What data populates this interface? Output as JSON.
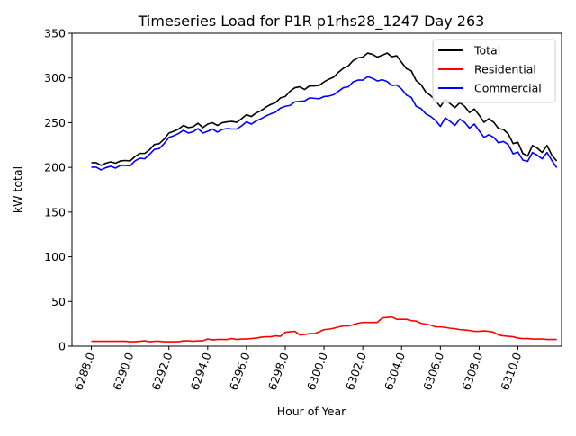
{
  "chart_data": {
    "type": "line",
    "title": "Timeseries Load for P1R p1rhs28_1247  Day 263",
    "xlabel": "Hour of Year",
    "ylabel": "kW total",
    "xlim": [
      6287.0,
      6312.25
    ],
    "ylim": [
      0,
      350
    ],
    "xticks": [
      6288,
      6290,
      6292,
      6294,
      6296,
      6298,
      6300,
      6302,
      6304,
      6306,
      6308,
      6310
    ],
    "xtick_labels": [
      "6288.0",
      "6290.0",
      "6292.0",
      "6294.0",
      "6296.0",
      "6298.0",
      "6300.0",
      "6302.0",
      "6304.0",
      "6306.0",
      "6308.0",
      "6310.0"
    ],
    "yticks": [
      0,
      50,
      100,
      150,
      200,
      250,
      300,
      350
    ],
    "ytick_labels": [
      "0",
      "50",
      "100",
      "150",
      "200",
      "250",
      "300",
      "350"
    ],
    "legend_position": "top-right",
    "grid": false,
    "x_start": 6288.0,
    "x_step": 0.25,
    "series": [
      {
        "name": "Total",
        "color": "#000000",
        "values": [
          205.2,
          205.2,
          202.2,
          204.7,
          206.2,
          204.7,
          207.2,
          207.7,
          207.2,
          212.1,
          215.6,
          215.6,
          219.6,
          225.6,
          226.5,
          231.5,
          238.4,
          240.4,
          242.9,
          246.9,
          244.4,
          245.4,
          249.4,
          244.4,
          248.4,
          249.9,
          246.9,
          249.9,
          250.9,
          251.4,
          250.4,
          254.4,
          258.9,
          256.9,
          260.8,
          263.3,
          267.3,
          270.3,
          272.3,
          277.7,
          279.2,
          285.2,
          289.1,
          290.1,
          287.1,
          291.1,
          291.1,
          291.6,
          295.6,
          298.6,
          301.0,
          306.5,
          310.9,
          313.4,
          319.4,
          322.4,
          323.3,
          327.8,
          326.3,
          323.3,
          325.3,
          327.8,
          323.8,
          324.8,
          317.4,
          310.4,
          308.0,
          297.1,
          292.6,
          284.2,
          280.2,
          274.7,
          267.8,
          276.2,
          271.3,
          266.8,
          272.3,
          268.3,
          261.3,
          265.3,
          258.4,
          250.4,
          254.4,
          250.4,
          243.4,
          242.4,
          237.5,
          226.6,
          228.0,
          215.6,
          212.6,
          224.5,
          221.5,
          216.6,
          224.5,
          213.6,
          207.2
        ]
      },
      {
        "name": "Residential",
        "color": "#ff0000",
        "values": [
          5.5,
          5.5,
          5.5,
          5.5,
          5.5,
          5.5,
          5.5,
          5.5,
          5.0,
          5.0,
          5.5,
          6.0,
          5.0,
          5.5,
          5.5,
          5.0,
          5.0,
          5.0,
          5.0,
          6.0,
          6.0,
          5.5,
          6.0,
          6.0,
          8.0,
          7.0,
          7.5,
          7.5,
          7.5,
          8.5,
          7.5,
          8.0,
          8.0,
          8.5,
          9.0,
          10.0,
          10.5,
          10.5,
          11.5,
          11.0,
          15.5,
          16.0,
          16.5,
          12.5,
          13.0,
          14.0,
          14.0,
          16.0,
          18.5,
          19.0,
          20.0,
          21.5,
          22.5,
          22.5,
          24.0,
          25.5,
          26.5,
          26.5,
          26.5,
          26.5,
          31.5,
          32.0,
          32.5,
          30.0,
          30.0,
          30.0,
          28.5,
          28.0,
          25.5,
          24.5,
          23.5,
          21.5,
          21.5,
          21.0,
          20.0,
          19.5,
          18.5,
          18.0,
          17.5,
          16.5,
          16.5,
          17.0,
          16.5,
          15.5,
          12.5,
          11.5,
          11.0,
          10.5,
          9.0,
          8.5,
          8.5,
          8.0,
          8.0,
          8.0,
          7.5,
          7.5,
          7.5
        ]
      },
      {
        "name": "Commercial",
        "color": "#0000ff",
        "values": [
          200.2,
          200.2,
          197.2,
          199.7,
          201.2,
          199.2,
          202.2,
          202.2,
          201.7,
          207.2,
          210.1,
          209.6,
          214.6,
          220.1,
          221.0,
          226.5,
          233.5,
          235.4,
          237.9,
          241.4,
          238.4,
          239.9,
          243.4,
          238.4,
          240.4,
          242.9,
          239.4,
          242.4,
          243.4,
          242.9,
          242.9,
          246.4,
          250.9,
          248.4,
          251.9,
          254.4,
          257.4,
          259.8,
          261.8,
          266.3,
          268.3,
          269.3,
          273.3,
          273.8,
          274.3,
          277.7,
          277.2,
          276.7,
          279.2,
          279.7,
          281.2,
          285.2,
          289.1,
          290.1,
          295.6,
          297.6,
          297.6,
          301.5,
          299.6,
          296.6,
          298.1,
          296.1,
          291.6,
          292.1,
          287.6,
          280.7,
          278.2,
          268.3,
          265.8,
          259.8,
          256.9,
          252.4,
          245.9,
          255.4,
          251.4,
          246.9,
          253.9,
          250.4,
          243.9,
          248.4,
          240.9,
          233.5,
          236.5,
          233.5,
          227.5,
          229.0,
          225.5,
          215.1,
          217.1,
          208.2,
          206.7,
          216.6,
          213.6,
          209.6,
          216.6,
          207.7,
          199.7
        ]
      }
    ]
  }
}
